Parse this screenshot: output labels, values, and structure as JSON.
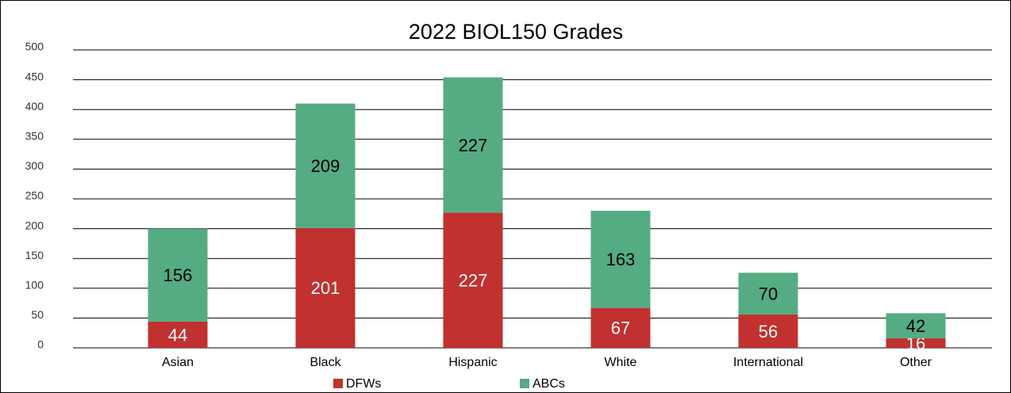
{
  "chart_data": {
    "type": "stacked-bar",
    "title": "2022 BIOL150 Grades",
    "categories": [
      "Asian",
      "Black",
      "Hispanic",
      "White",
      "International",
      "Other"
    ],
    "series": [
      {
        "name": "DFWs",
        "color": "#c0312f",
        "values": [
          44,
          201,
          227,
          67,
          56,
          16
        ]
      },
      {
        "name": "ABCs",
        "color": "#55ab82",
        "values": [
          156,
          209,
          227,
          163,
          70,
          42
        ]
      }
    ],
    "ylim": [
      0,
      500
    ],
    "yticks": [
      0,
      50,
      100,
      150,
      200,
      250,
      300,
      350,
      400,
      450,
      500
    ],
    "grid": true,
    "legend": "bottom"
  }
}
